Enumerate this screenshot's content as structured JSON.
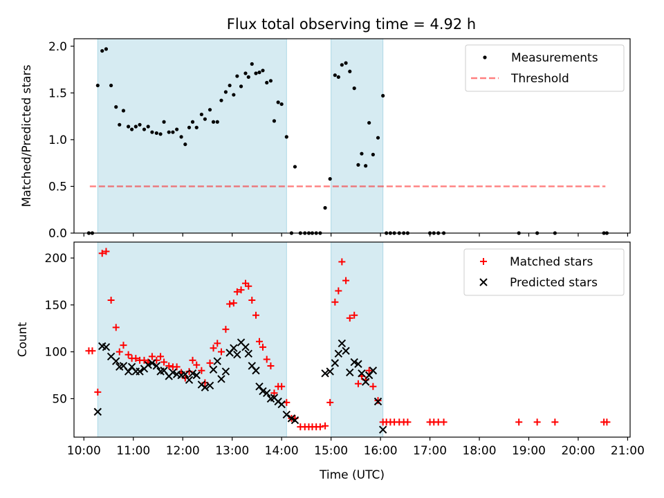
{
  "title": "Flux total observing time = 4.92 h",
  "colors": {
    "shade": "#add8e6",
    "threshold": "#ff0000",
    "matched": "#ff0000",
    "predicted": "#000000",
    "measurement": "#000000"
  },
  "chart_data": [
    {
      "type": "scatter",
      "name": "ratio-panel",
      "xlabel": "",
      "ylabel": "Matched/Predicted stars",
      "xlim": [
        9.8,
        21.05
      ],
      "ylim": [
        0,
        2.08
      ],
      "yticks": [
        0,
        0.5,
        1.0,
        1.5,
        2.0
      ],
      "yticklabels": [
        "0.0",
        "0.5",
        "1.0",
        "1.5",
        "2.0"
      ],
      "shaded_intervals": [
        [
          10.28,
          14.1
        ],
        [
          15.0,
          16.05
        ]
      ],
      "threshold": {
        "value": 0.5,
        "x_range": [
          10.12,
          20.55
        ],
        "label": "Threshold"
      },
      "legend": {
        "position": "upper right",
        "entries": [
          "Measurements",
          "Threshold"
        ]
      },
      "series": [
        {
          "name": "Measurements",
          "points": [
            [
              10.1,
              0
            ],
            [
              10.17,
              0
            ],
            [
              10.28,
              1.58
            ],
            [
              10.37,
              1.95
            ],
            [
              10.45,
              1.97
            ],
            [
              10.55,
              1.58
            ],
            [
              10.65,
              1.35
            ],
            [
              10.72,
              1.16
            ],
            [
              10.8,
              1.31
            ],
            [
              10.9,
              1.14
            ],
            [
              10.97,
              1.11
            ],
            [
              11.05,
              1.14
            ],
            [
              11.13,
              1.16
            ],
            [
              11.22,
              1.11
            ],
            [
              11.3,
              1.14
            ],
            [
              11.38,
              1.08
            ],
            [
              11.47,
              1.07
            ],
            [
              11.55,
              1.06
            ],
            [
              11.62,
              1.19
            ],
            [
              11.72,
              1.08
            ],
            [
              11.8,
              1.08
            ],
            [
              11.88,
              1.11
            ],
            [
              11.97,
              1.03
            ],
            [
              12.05,
              0.95
            ],
            [
              12.13,
              1.13
            ],
            [
              12.2,
              1.19
            ],
            [
              12.28,
              1.13
            ],
            [
              12.38,
              1.27
            ],
            [
              12.45,
              1.22
            ],
            [
              12.55,
              1.32
            ],
            [
              12.62,
              1.19
            ],
            [
              12.7,
              1.19
            ],
            [
              12.78,
              1.42
            ],
            [
              12.87,
              1.51
            ],
            [
              12.95,
              1.58
            ],
            [
              13.03,
              1.48
            ],
            [
              13.1,
              1.68
            ],
            [
              13.18,
              1.57
            ],
            [
              13.27,
              1.71
            ],
            [
              13.33,
              1.67
            ],
            [
              13.4,
              1.81
            ],
            [
              13.48,
              1.71
            ],
            [
              13.55,
              1.72
            ],
            [
              13.62,
              1.74
            ],
            [
              13.7,
              1.61
            ],
            [
              13.78,
              1.63
            ],
            [
              13.85,
              1.2
            ],
            [
              13.93,
              1.4
            ],
            [
              14.0,
              1.38
            ],
            [
              14.1,
              1.03
            ],
            [
              14.2,
              0
            ],
            [
              14.27,
              0.71
            ],
            [
              14.38,
              0
            ],
            [
              14.47,
              0
            ],
            [
              14.55,
              0
            ],
            [
              14.62,
              0
            ],
            [
              14.7,
              0
            ],
            [
              14.78,
              0
            ],
            [
              14.88,
              0.27
            ],
            [
              14.98,
              0.58
            ],
            [
              15.08,
              1.69
            ],
            [
              15.15,
              1.67
            ],
            [
              15.22,
              1.8
            ],
            [
              15.3,
              1.82
            ],
            [
              15.38,
              1.73
            ],
            [
              15.47,
              1.55
            ],
            [
              15.55,
              0.73
            ],
            [
              15.62,
              0.85
            ],
            [
              15.7,
              0.72
            ],
            [
              15.77,
              1.18
            ],
            [
              15.85,
              0.84
            ],
            [
              15.95,
              1.02
            ],
            [
              16.05,
              1.47
            ],
            [
              16.12,
              0
            ],
            [
              16.2,
              0
            ],
            [
              16.28,
              0
            ],
            [
              16.38,
              0
            ],
            [
              16.47,
              0
            ],
            [
              16.55,
              0
            ],
            [
              17.0,
              0
            ],
            [
              17.08,
              0
            ],
            [
              17.17,
              0
            ],
            [
              17.28,
              0
            ],
            [
              18.8,
              0
            ],
            [
              19.17,
              0
            ],
            [
              19.53,
              0
            ],
            [
              20.52,
              0
            ],
            [
              20.58,
              0
            ]
          ]
        }
      ]
    },
    {
      "type": "scatter",
      "name": "count-panel",
      "xlabel": "Time (UTC)",
      "ylabel": "Count",
      "xlim": [
        9.8,
        21.05
      ],
      "ylim": [
        9,
        217
      ],
      "xticks": [
        10,
        11,
        12,
        13,
        14,
        15,
        16,
        17,
        18,
        19,
        20,
        21
      ],
      "xticklabels": [
        "10:00",
        "11:00",
        "12:00",
        "13:00",
        "14:00",
        "15:00",
        "16:00",
        "17:00",
        "18:00",
        "19:00",
        "20:00",
        "21:00"
      ],
      "yticks": [
        50,
        100,
        150,
        200
      ],
      "yticklabels": [
        "50",
        "100",
        "150",
        "200"
      ],
      "shaded_intervals": [
        [
          10.28,
          14.1
        ],
        [
          15.0,
          16.05
        ]
      ],
      "legend": {
        "position": "upper right",
        "entries": [
          "Matched stars",
          "Predicted stars"
        ]
      },
      "series": [
        {
          "name": "Matched stars",
          "marker": "+",
          "points": [
            [
              10.1,
              101
            ],
            [
              10.17,
              101
            ],
            [
              10.28,
              57
            ],
            [
              10.37,
              205
            ],
            [
              10.45,
              207
            ],
            [
              10.55,
              155
            ],
            [
              10.65,
              126
            ],
            [
              10.72,
              100
            ],
            [
              10.8,
              107
            ],
            [
              10.9,
              97
            ],
            [
              10.97,
              93
            ],
            [
              11.05,
              93
            ],
            [
              11.13,
              91
            ],
            [
              11.22,
              91
            ],
            [
              11.3,
              89
            ],
            [
              11.38,
              95
            ],
            [
              11.47,
              91
            ],
            [
              11.55,
              95
            ],
            [
              11.62,
              89
            ],
            [
              11.72,
              85
            ],
            [
              11.8,
              84
            ],
            [
              11.88,
              84
            ],
            [
              11.97,
              78
            ],
            [
              12.05,
              72
            ],
            [
              12.13,
              79
            ],
            [
              12.2,
              91
            ],
            [
              12.28,
              86
            ],
            [
              12.38,
              80
            ],
            [
              12.45,
              67
            ],
            [
              12.55,
              88
            ],
            [
              12.62,
              104
            ],
            [
              12.7,
              109
            ],
            [
              12.78,
              100
            ],
            [
              12.87,
              124
            ],
            [
              12.95,
              151
            ],
            [
              13.03,
              152
            ],
            [
              13.1,
              164
            ],
            [
              13.18,
              166
            ],
            [
              13.27,
              173
            ],
            [
              13.33,
              170
            ],
            [
              13.4,
              155
            ],
            [
              13.48,
              139
            ],
            [
              13.55,
              111
            ],
            [
              13.62,
              105
            ],
            [
              13.7,
              92
            ],
            [
              13.78,
              85
            ],
            [
              13.85,
              56
            ],
            [
              13.93,
              63
            ],
            [
              14.0,
              63
            ],
            [
              14.1,
              46
            ],
            [
              14.2,
              29
            ],
            [
              14.27,
              29
            ],
            [
              14.38,
              20
            ],
            [
              14.47,
              20
            ],
            [
              14.55,
              20
            ],
            [
              14.62,
              20
            ],
            [
              14.7,
              20
            ],
            [
              14.78,
              20
            ],
            [
              14.88,
              21
            ],
            [
              14.98,
              46
            ],
            [
              15.08,
              153
            ],
            [
              15.15,
              165
            ],
            [
              15.22,
              196
            ],
            [
              15.3,
              176
            ],
            [
              15.38,
              136
            ],
            [
              15.47,
              139
            ],
            [
              15.55,
              66
            ],
            [
              15.62,
              74
            ],
            [
              15.7,
              70
            ],
            [
              15.77,
              80
            ],
            [
              15.85,
              63
            ],
            [
              15.95,
              48
            ],
            [
              16.05,
              25
            ],
            [
              16.12,
              25
            ],
            [
              16.2,
              25
            ],
            [
              16.28,
              25
            ],
            [
              16.38,
              25
            ],
            [
              16.47,
              25
            ],
            [
              16.55,
              25
            ],
            [
              17.0,
              25
            ],
            [
              17.08,
              25
            ],
            [
              17.17,
              25
            ],
            [
              17.28,
              25
            ],
            [
              18.8,
              25
            ],
            [
              19.17,
              25
            ],
            [
              19.53,
              25
            ],
            [
              20.52,
              25
            ],
            [
              20.58,
              25
            ]
          ]
        },
        {
          "name": "Predicted stars",
          "marker": "x",
          "points": [
            [
              10.28,
              36
            ],
            [
              10.37,
              106
            ],
            [
              10.45,
              105
            ],
            [
              10.55,
              95
            ],
            [
              10.65,
              90
            ],
            [
              10.72,
              84
            ],
            [
              10.8,
              85
            ],
            [
              10.9,
              79
            ],
            [
              10.97,
              84
            ],
            [
              11.05,
              79
            ],
            [
              11.13,
              79
            ],
            [
              11.22,
              82
            ],
            [
              11.3,
              86
            ],
            [
              11.38,
              88
            ],
            [
              11.47,
              85
            ],
            [
              11.55,
              79
            ],
            [
              11.62,
              80
            ],
            [
              11.72,
              74
            ],
            [
              11.8,
              78
            ],
            [
              11.88,
              76
            ],
            [
              11.97,
              75
            ],
            [
              12.05,
              76
            ],
            [
              12.13,
              70
            ],
            [
              12.2,
              77
            ],
            [
              12.28,
              75
            ],
            [
              12.38,
              65
            ],
            [
              12.45,
              62
            ],
            [
              12.55,
              64
            ],
            [
              12.62,
              81
            ],
            [
              12.7,
              90
            ],
            [
              12.78,
              71
            ],
            [
              12.87,
              79
            ],
            [
              12.95,
              99
            ],
            [
              13.03,
              104
            ],
            [
              13.1,
              97
            ],
            [
              13.18,
              110
            ],
            [
              13.27,
              105
            ],
            [
              13.33,
              98
            ],
            [
              13.4,
              85
            ],
            [
              13.48,
              80
            ],
            [
              13.55,
              63
            ],
            [
              13.62,
              58
            ],
            [
              13.7,
              56
            ],
            [
              13.78,
              50
            ],
            [
              13.85,
              51
            ],
            [
              13.93,
              47
            ],
            [
              14.0,
              44
            ],
            [
              14.1,
              33
            ],
            [
              14.2,
              29
            ],
            [
              14.27,
              27
            ],
            [
              14.88,
              77
            ],
            [
              14.98,
              79
            ],
            [
              15.08,
              88
            ],
            [
              15.15,
              98
            ],
            [
              15.22,
              109
            ],
            [
              15.3,
              101
            ],
            [
              15.38,
              78
            ],
            [
              15.47,
              89
            ],
            [
              15.55,
              87
            ],
            [
              15.62,
              77
            ],
            [
              15.7,
              68
            ],
            [
              15.77,
              75
            ],
            [
              15.85,
              80
            ],
            [
              15.95,
              47
            ],
            [
              16.05,
              17
            ]
          ]
        }
      ]
    }
  ]
}
